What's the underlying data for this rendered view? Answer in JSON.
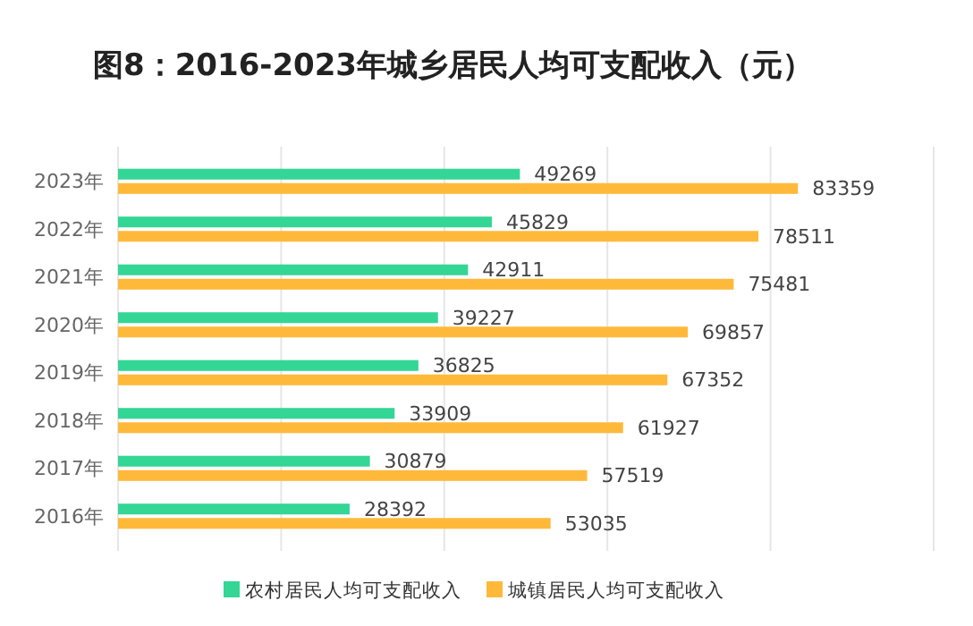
{
  "chart_data": {
    "type": "bar",
    "orientation": "horizontal",
    "title": "图8：2016-2023年城乡居民人均可支配收入（元）",
    "categories": [
      "2023年",
      "2022年",
      "2021年",
      "2020年",
      "2019年",
      "2018年",
      "2017年",
      "2016年"
    ],
    "series": [
      {
        "name": "农村居民人均可支配收入",
        "color": "#33d695",
        "values": [
          49269,
          45829,
          42911,
          39227,
          36825,
          33909,
          30879,
          28392
        ]
      },
      {
        "name": "城镇居民人均可支配收入",
        "color": "#ffb93a",
        "values": [
          83359,
          78511,
          75481,
          69857,
          67352,
          61927,
          57519,
          53035
        ]
      }
    ],
    "xlim": [
      0,
      100000
    ],
    "xticks": [
      {
        "value": 0,
        "label": null
      },
      {
        "value": 20000,
        "label": null
      },
      {
        "value": 40000,
        "label": null
      },
      {
        "value": 60000,
        "label": null
      },
      {
        "value": 80000,
        "label": null
      },
      {
        "value": 100000,
        "label": null
      }
    ],
    "grid": "x",
    "tick_labels": "y",
    "data_labels": true,
    "legend": "bottom"
  }
}
